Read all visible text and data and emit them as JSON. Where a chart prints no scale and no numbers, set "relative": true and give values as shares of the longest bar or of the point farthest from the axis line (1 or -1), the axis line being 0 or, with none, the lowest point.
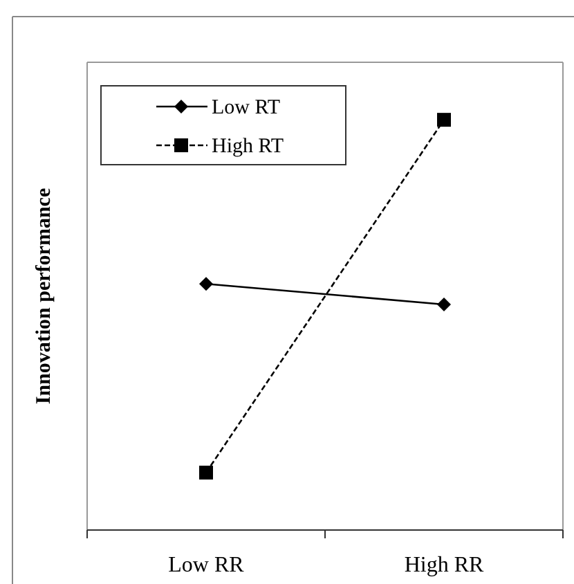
{
  "chart_data": {
    "type": "line",
    "ylabel": "Innovation performance",
    "categories": [
      "Low RR",
      "High RR"
    ],
    "relative": true,
    "legend": "top left",
    "series": [
      {
        "name": "Low RT",
        "color": "#000000",
        "marker": "diamond",
        "line_style": "solid",
        "values": [
          0.6,
          0.55
        ]
      },
      {
        "name": "High RT",
        "color": "#000000",
        "marker": "square",
        "line_style": "dashed",
        "values": [
          0.14,
          1
        ]
      }
    ]
  }
}
